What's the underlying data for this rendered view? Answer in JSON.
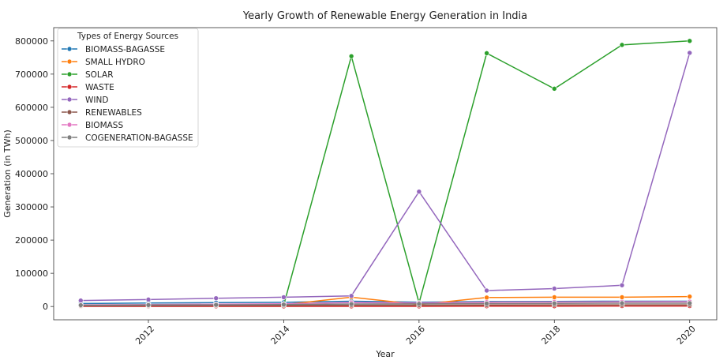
{
  "chart_data": {
    "type": "line",
    "title": "Yearly Growth of Renewable Energy Generation in India",
    "xlabel": "Year",
    "ylabel": "Generation (in TWh)",
    "xlim": [
      2010.6,
      2020.4
    ],
    "ylim": [
      -40000,
      840000
    ],
    "x_ticks": [
      2012,
      2014,
      2016,
      2018,
      2020
    ],
    "y_ticks": [
      0,
      100000,
      200000,
      300000,
      400000,
      500000,
      600000,
      700000,
      800000
    ],
    "grid": false,
    "legend": {
      "title": "Types of Energy Sources",
      "placement": "top-left"
    },
    "x": [
      2011,
      2012,
      2013,
      2014,
      2015,
      2016,
      2017,
      2018,
      2019,
      2020
    ],
    "series": [
      {
        "name": "BIOMASS-BAGASSE",
        "color": "#1f77b4",
        "values": [
          9000,
          10500,
          11500,
          12500,
          16000,
          13000,
          15000,
          15500,
          16000,
          16000
        ]
      },
      {
        "name": "SMALL HYDRO",
        "color": "#ff7f0e",
        "values": [
          3500,
          4000,
          4500,
          5500,
          28000,
          6000,
          27000,
          28000,
          28000,
          30000
        ]
      },
      {
        "name": "SOLAR",
        "color": "#2ca02c",
        "values": [
          1000,
          1500,
          2500,
          4000,
          754000,
          11000,
          763000,
          656000,
          788000,
          800000
        ]
      },
      {
        "name": "WASTE",
        "color": "#d62728",
        "values": [
          500,
          500,
          500,
          500,
          500,
          500,
          1000,
          1000,
          1500,
          1500
        ]
      },
      {
        "name": "WIND",
        "color": "#9467bd",
        "values": [
          18000,
          21000,
          25000,
          28000,
          32000,
          346000,
          48000,
          54000,
          64000,
          764000
        ]
      },
      {
        "name": "RENEWABLES",
        "color": "#8c564b",
        "values": [
          2000,
          2500,
          3000,
          3500,
          4000,
          4000,
          4500,
          5000,
          5000,
          5000
        ]
      },
      {
        "name": "BIOMASS",
        "color": "#e377c2",
        "values": [
          5000,
          6000,
          7000,
          8000,
          12000,
          11000,
          13000,
          13500,
          14000,
          14500
        ]
      },
      {
        "name": "COGENERATION-BAGASSE",
        "color": "#7f7f7f",
        "values": [
          4000,
          4500,
          5000,
          6000,
          7500,
          8000,
          9000,
          9500,
          10000,
          10000
        ]
      }
    ]
  }
}
